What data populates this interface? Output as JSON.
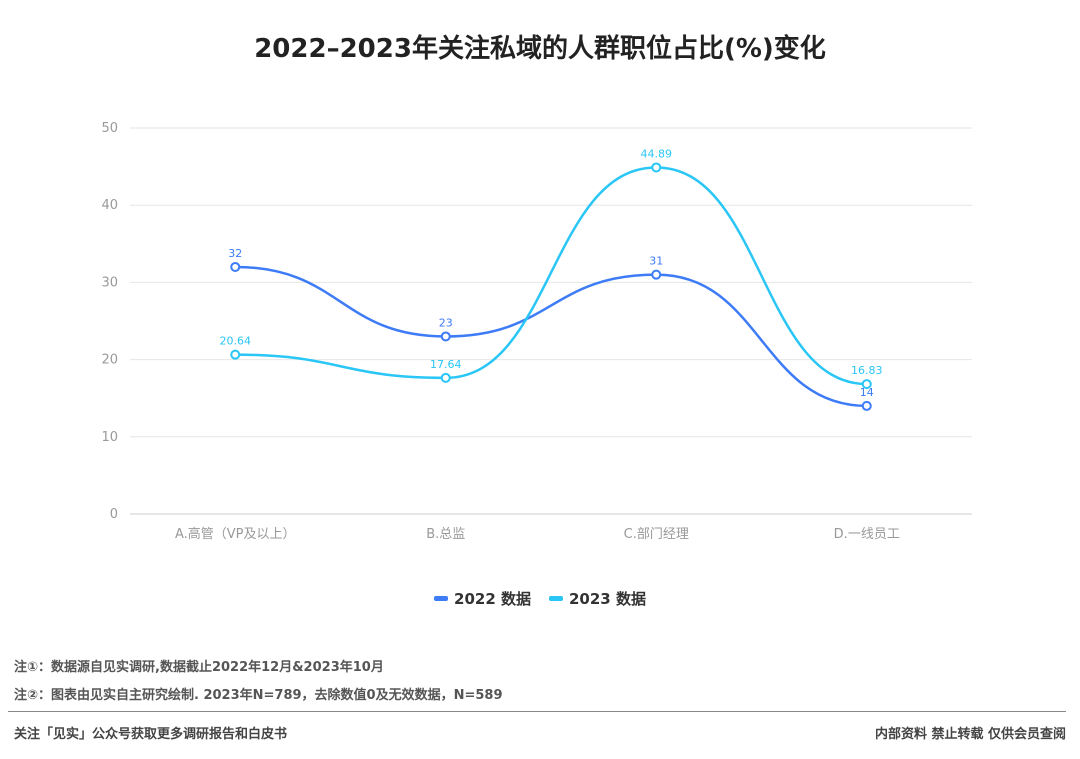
{
  "title": "2022–2023年关注私域的人群职位占比(%)变化",
  "chart_data": {
    "type": "line",
    "title": "2022–2023年关注私域的人群职位占比(%)变化",
    "categories": [
      "A.高管（VP及以上）",
      "B.总监",
      "C.部门经理",
      "D.一线员工"
    ],
    "ylim": [
      0,
      50
    ],
    "yticks": [
      0,
      10,
      20,
      30,
      40,
      50
    ],
    "grid": true,
    "smooth": true,
    "legend_position": "bottom",
    "series": [
      {
        "name": "2022 数据",
        "color": "#3d7bf7",
        "values": [
          32,
          23,
          31,
          14
        ],
        "labels": [
          "32",
          "23",
          "31",
          "14"
        ]
      },
      {
        "name": "2023 数据",
        "color": "#29c6f6",
        "values": [
          20.64,
          17.64,
          44.89,
          16.83
        ],
        "labels": [
          "20.64",
          "17.64",
          "44.89",
          "16.83"
        ]
      }
    ]
  },
  "notes": {
    "note1": "注①：数据源自见实调研,数据截止2022年12月&2023年10月",
    "note2": "注②：图表由见实自主研究绘制. 2023年N=789，去除数值0及无效数据，N=589"
  },
  "footer": {
    "left": "关注「见实」公众号获取更多调研报告和白皮书",
    "right": "内部资料 禁止转载 仅供会员查阅"
  }
}
